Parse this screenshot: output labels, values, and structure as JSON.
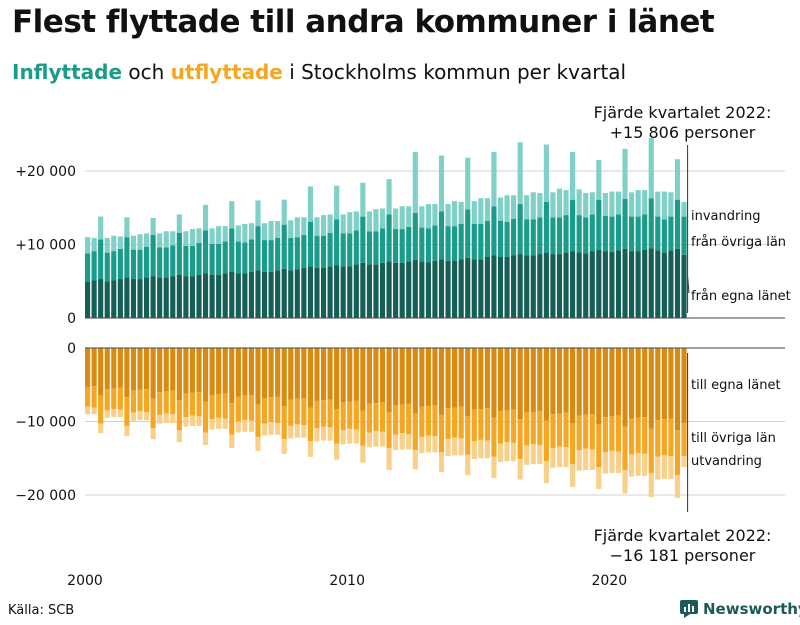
{
  "title": "Flest flyttade till andra kommuner i länet",
  "subtitle": {
    "part1": "Inflyttade",
    "part2": " och ",
    "part3": "utflyttade",
    "part4": " i Stockholms kommun per kvartal"
  },
  "annotations": {
    "top_line1": "Fjärde kvartalet 2022:",
    "top_line2": "+15 806 personer",
    "bottom_line1": "Fjärde kvartalet 2022:",
    "bottom_line2": "−16 181 personer"
  },
  "source": "Källa: SCB",
  "brand": "Newsworthy",
  "colors": {
    "in_dark": "#155f57",
    "in_mid": "#1a9c8a",
    "in_light": "#7fd0c6",
    "out_dark": "#d98a10",
    "out_mid": "#f5a623",
    "out_light": "#f9d08a",
    "inflyttade_text": "#1a9c8a",
    "utflyttade_text": "#f5a623",
    "brand": "#1b5a58"
  },
  "chart_data": {
    "type": "bar",
    "stacked": true,
    "title": "Flest flyttade till andra kommuner i länet",
    "period": "kvartal 2000 Q1 – 2022 Q4",
    "x_ticks": [
      "2000",
      "2010",
      "2020"
    ],
    "panels": [
      {
        "name": "Inflyttade",
        "yticks": [
          0,
          10000,
          20000
        ],
        "ytick_labels": [
          "0",
          "+10 000",
          "+20 000"
        ],
        "ylim": [
          0,
          22500
        ],
        "series_labels": [
          "från egna länet",
          "från övriga län",
          "invandring"
        ],
        "series": [
          {
            "name": "från egna länet",
            "values": [
              4900,
              5100,
              5300,
              5000,
              5100,
              5300,
              5500,
              5300,
              5300,
              5500,
              5700,
              5500,
              5500,
              5700,
              5900,
              5700,
              5700,
              5900,
              6100,
              5900,
              5900,
              6100,
              6300,
              6100,
              6100,
              6300,
              6500,
              6300,
              6300,
              6500,
              6700,
              6500,
              6600,
              6800,
              7000,
              6800,
              6800,
              7000,
              7200,
              7000,
              7000,
              7300,
              7500,
              7300,
              7300,
              7500,
              7700,
              7500,
              7500,
              7700,
              7900,
              7700,
              7600,
              7800,
              8000,
              7800,
              7800,
              8000,
              8200,
              8000,
              8000,
              8300,
              8500,
              8300,
              8300,
              8500,
              8700,
              8500,
              8500,
              8700,
              8900,
              8700,
              8700,
              8900,
              9100,
              8900,
              8800,
              9100,
              9300,
              9100,
              9000,
              9200,
              9400,
              9100,
              9100,
              9300,
              9500,
              9200,
              8900,
              9200,
              9400,
              8600
            ]
          },
          {
            "name": "från övriga län",
            "values": [
              3900,
              4000,
              5400,
              3900,
              4000,
              4100,
              5500,
              4000,
              4000,
              4200,
              5600,
              4100,
              4100,
              4200,
              5700,
              4100,
              4100,
              4300,
              5800,
              4200,
              4200,
              4300,
              5900,
              4300,
              4200,
              4400,
              6000,
              4300,
              4300,
              4400,
              6000,
              4400,
              4400,
              4500,
              6100,
              4400,
              4400,
              4600,
              6200,
              4500,
              4500,
              4600,
              6300,
              4500,
              4500,
              4700,
              6400,
              4600,
              4600,
              4700,
              6400,
              4600,
              4600,
              4800,
              6500,
              4700,
              4700,
              4800,
              6600,
              4800,
              4800,
              4900,
              6700,
              4900,
              4800,
              5000,
              6800,
              4900,
              4900,
              5000,
              6900,
              5000,
              5000,
              5100,
              7000,
              5100,
              4900,
              5000,
              6800,
              4800,
              4800,
              4900,
              6800,
              4700,
              4700,
              4800,
              6800,
              4600,
              4500,
              4600,
              6700,
              5200
            ]
          },
          {
            "name": "invandring",
            "values": [
              2200,
              1800,
              3100,
              2000,
              2100,
              1700,
              2700,
              1900,
              2100,
              1800,
              2300,
              1900,
              2200,
              1900,
              2500,
              2000,
              2300,
              2000,
              3500,
              2100,
              2400,
              2100,
              3700,
              2200,
              2500,
              2200,
              3500,
              2300,
              2600,
              2300,
              3400,
              2400,
              2700,
              2400,
              4800,
              2500,
              2800,
              2500,
              4600,
              2600,
              2900,
              2600,
              4600,
              2700,
              3000,
              2700,
              4800,
              2800,
              3100,
              2800,
              8300,
              2900,
              3300,
              2900,
              7600,
              3000,
              3400,
              3000,
              7000,
              3100,
              3500,
              3100,
              7400,
              3200,
              3600,
              3200,
              8400,
              3300,
              3700,
              3300,
              7800,
              3400,
              3900,
              3400,
              6500,
              3500,
              3300,
              3000,
              5400,
              3100,
              3400,
              3100,
              6800,
              3300,
              3600,
              3300,
              8200,
              3400,
              3800,
              3300,
              5500,
              2000
            ]
          }
        ]
      },
      {
        "name": "Utflyttade",
        "yticks": [
          0,
          -10000,
          -20000
        ],
        "ytick_labels": [
          "0",
          "−10 000",
          "−20 000"
        ],
        "ylim": [
          -22500,
          0
        ],
        "series_labels": [
          "till egna länet",
          "till övriga län",
          "utvandring"
        ],
        "series": [
          {
            "name": "till egna länet",
            "values": [
              -5300,
              -5200,
              -6500,
              -5600,
              -5500,
              -5400,
              -6700,
              -5800,
              -5700,
              -5600,
              -6900,
              -6000,
              -5900,
              -5800,
              -7100,
              -6200,
              -6100,
              -6000,
              -7300,
              -6400,
              -6300,
              -6200,
              -7500,
              -6600,
              -6500,
              -6400,
              -7700,
              -6800,
              -6700,
              -6600,
              -7900,
              -7000,
              -6900,
              -6800,
              -8100,
              -7200,
              -7100,
              -7000,
              -8300,
              -7400,
              -7300,
              -7200,
              -8500,
              -7600,
              -7500,
              -7400,
              -8700,
              -7800,
              -7700,
              -7600,
              -8900,
              -8000,
              -7900,
              -7800,
              -9100,
              -8200,
              -8100,
              -8000,
              -9300,
              -8400,
              -8300,
              -8200,
              -9500,
              -8600,
              -8500,
              -8400,
              -9700,
              -8800,
              -8700,
              -8600,
              -9900,
              -9000,
              -8900,
              -8800,
              -10200,
              -9200,
              -9100,
              -9000,
              -10400,
              -9400,
              -9300,
              -9200,
              -10700,
              -9600,
              -9500,
              -9400,
              -11000,
              -9800,
              -9700,
              -9600,
              -11200,
              -10200
            ]
          },
          {
            "name": "till övriga län",
            "values": [
              -2700,
              -2900,
              -3800,
              -2900,
              -2800,
              -3000,
              -3900,
              -3000,
              -2900,
              -3100,
              -4000,
              -3100,
              -3000,
              -3200,
              -4100,
              -3200,
              -3100,
              -3300,
              -4200,
              -3300,
              -3200,
              -3400,
              -4300,
              -3400,
              -3300,
              -3500,
              -4400,
              -3500,
              -3400,
              -3600,
              -4500,
              -3600,
              -3500,
              -3700,
              -4600,
              -3700,
              -3600,
              -3800,
              -4700,
              -3800,
              -3700,
              -3900,
              -4800,
              -3900,
              -3800,
              -4000,
              -4900,
              -4000,
              -3900,
              -4100,
              -5000,
              -4100,
              -4000,
              -4200,
              -5100,
              -4200,
              -4100,
              -4300,
              -5200,
              -4300,
              -4200,
              -4400,
              -5300,
              -4400,
              -4300,
              -4500,
              -5400,
              -4500,
              -4400,
              -4600,
              -5500,
              -4600,
              -4500,
              -4700,
              -5600,
              -4700,
              -4600,
              -4800,
              -5800,
              -4800,
              -4700,
              -4900,
              -5900,
              -4900,
              -4800,
              -5000,
              -6000,
              -5000,
              -4900,
              -5100,
              -6100,
              -4500
            ]
          },
          {
            "name": "utvandring",
            "values": [
              -1000,
              -900,
              -1300,
              -1000,
              -1100,
              -1000,
              -1400,
              -1100,
              -1200,
              -1100,
              -1500,
              -1200,
              -1300,
              -1200,
              -1600,
              -1300,
              -1400,
              -1300,
              -1700,
              -1400,
              -1500,
              -1400,
              -1800,
              -1500,
              -1600,
              -1500,
              -1900,
              -1600,
              -1700,
              -1600,
              -2000,
              -1700,
              -1800,
              -1700,
              -2100,
              -1800,
              -1900,
              -1800,
              -2200,
              -1900,
              -2000,
              -1900,
              -2300,
              -2000,
              -2100,
              -2000,
              -3000,
              -2100,
              -2200,
              -2100,
              -2600,
              -2200,
              -2300,
              -2200,
              -2700,
              -2300,
              -2400,
              -2300,
              -2800,
              -2400,
              -2500,
              -2400,
              -2900,
              -2500,
              -2600,
              -2500,
              -2800,
              -2600,
              -2700,
              -2600,
              -3000,
              -2700,
              -2800,
              -2700,
              -3100,
              -2800,
              -2900,
              -2800,
              -3000,
              -2900,
              -3000,
              -2900,
              -3200,
              -3000,
              -3100,
              -3000,
              -3300,
              -3100,
              -3200,
              -3100,
              -3100,
              -1500
            ]
          }
        ]
      }
    ]
  }
}
